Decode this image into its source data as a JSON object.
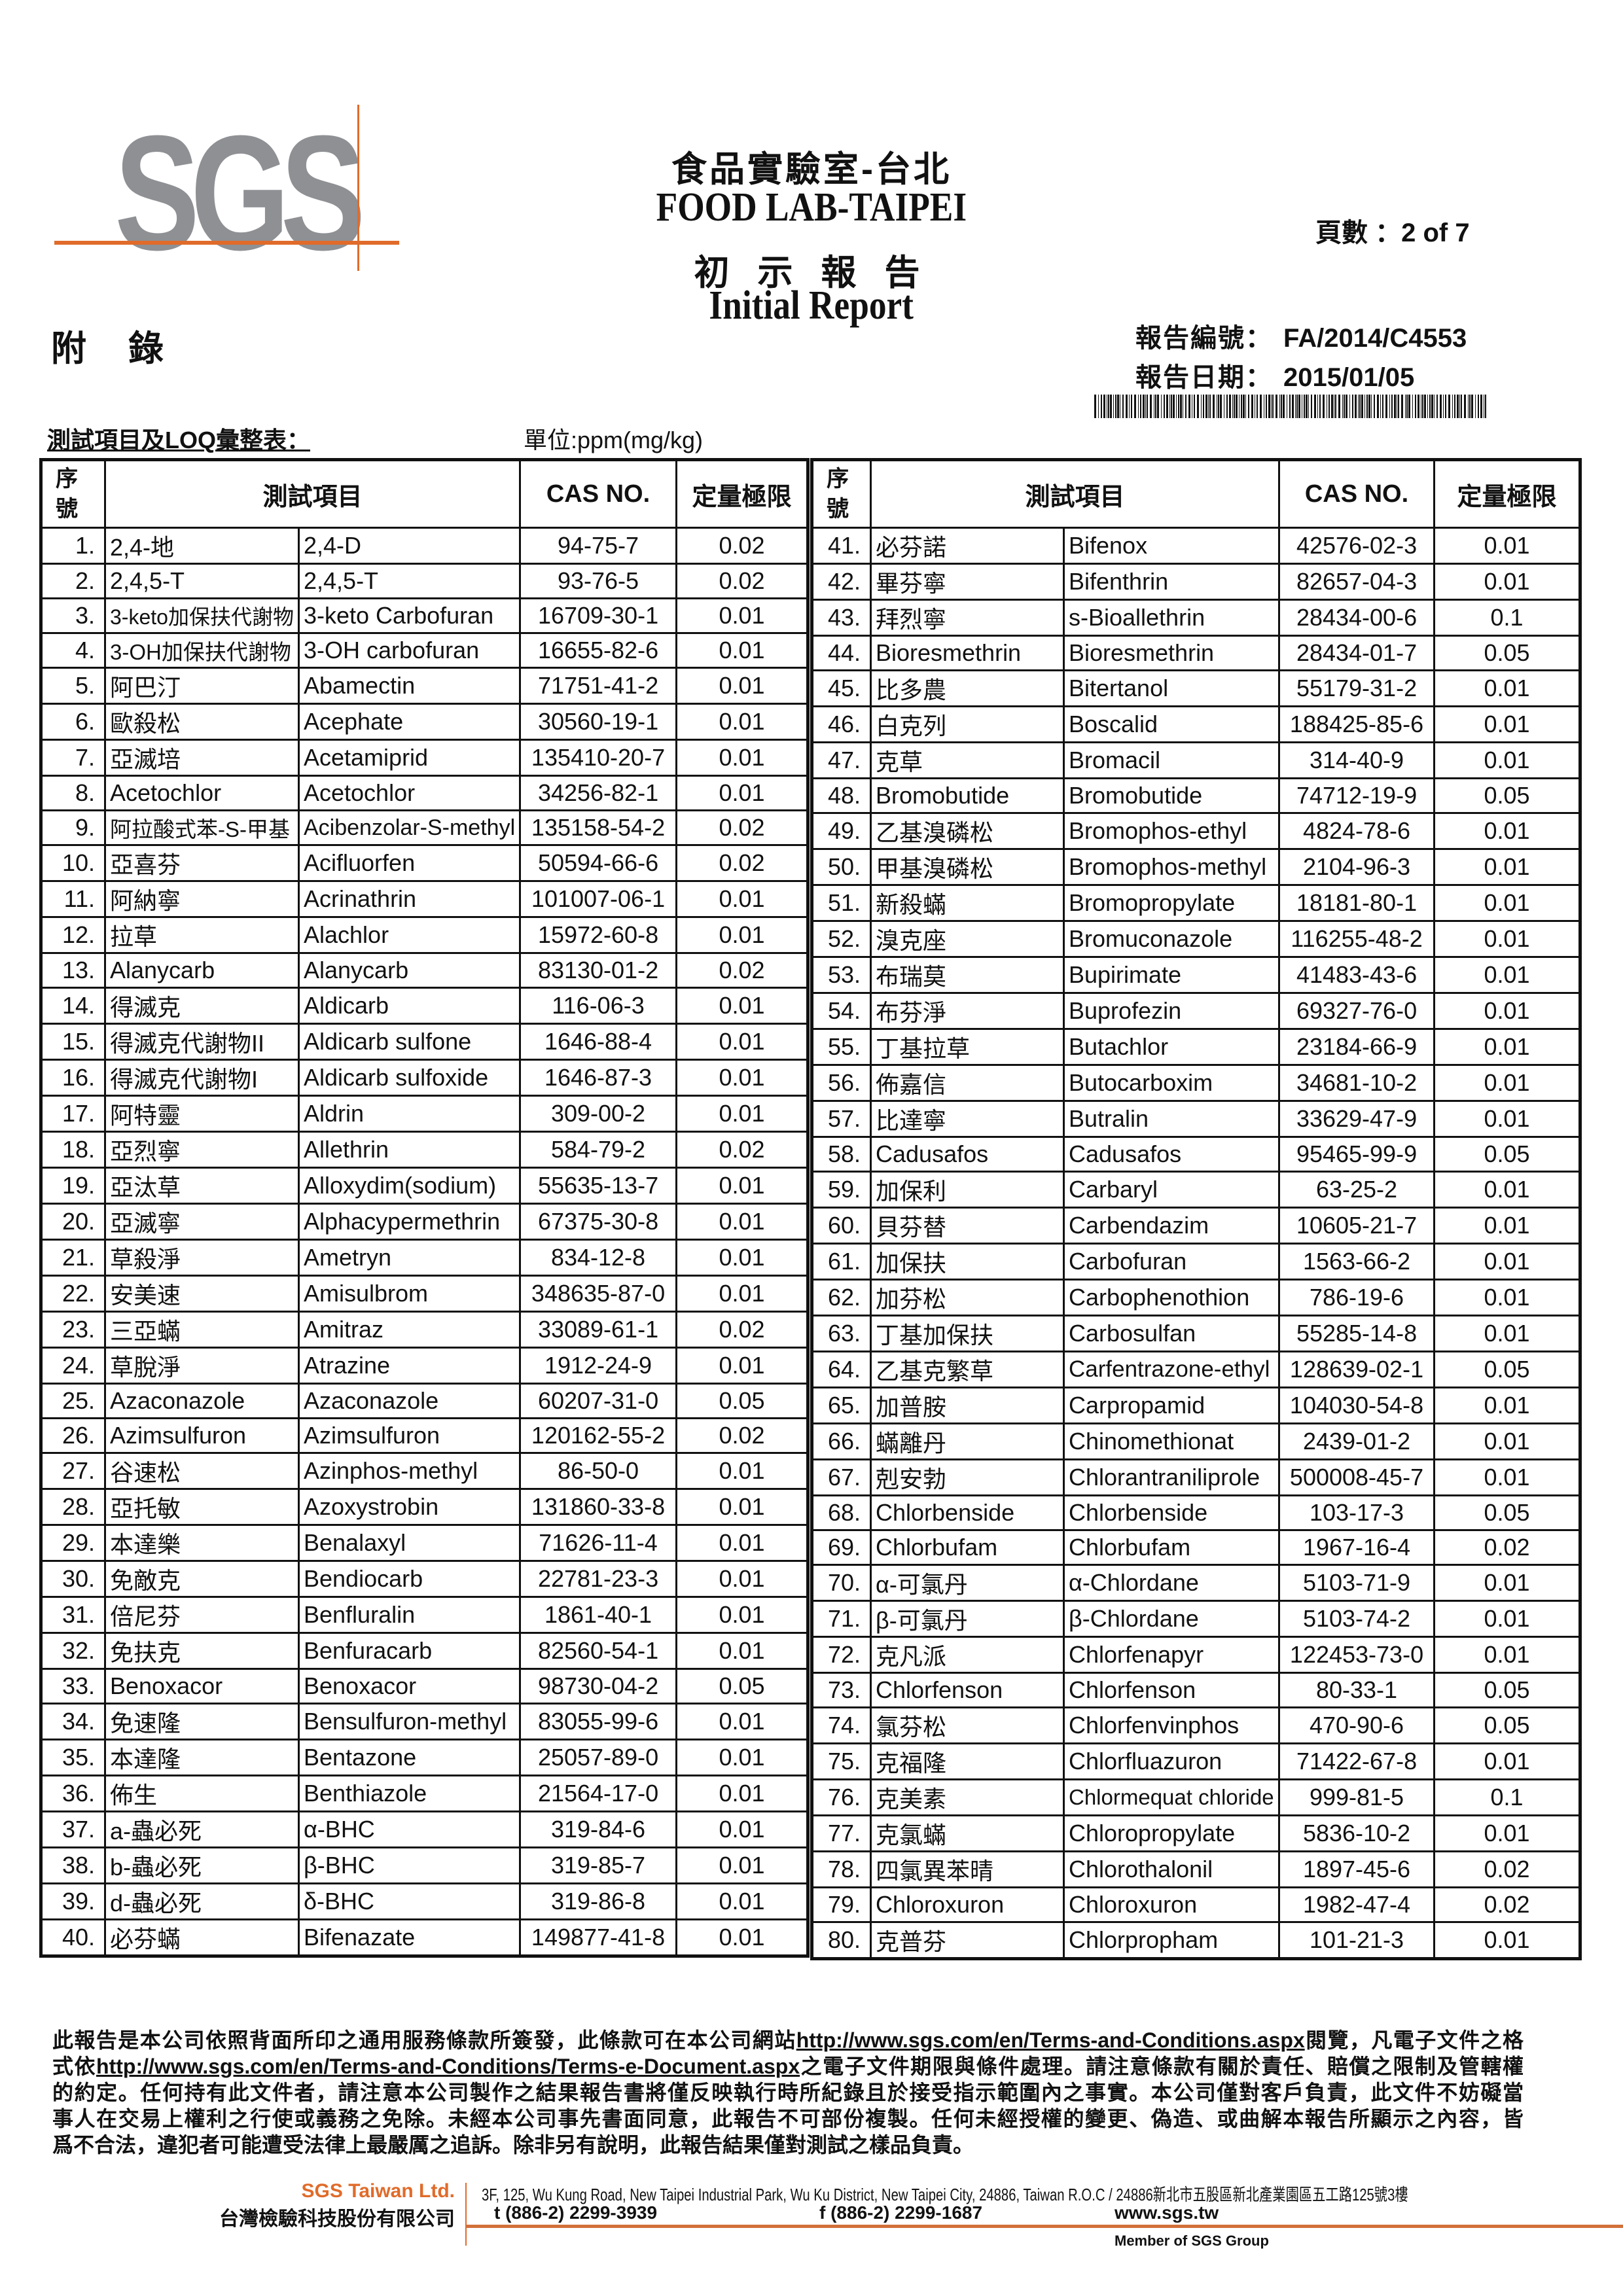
{
  "header": {
    "logo": "SGS",
    "title_cn": "食品實驗室-台北",
    "title_en": "FOOD LAB-TAIPEI",
    "report_type_cn": "初 示 報 告",
    "report_type_en": "Initial Report",
    "page_label": "頁數 ：",
    "page_value": "2 of 7",
    "appendix": "附錄",
    "report_no_label": "報告編號：",
    "report_no": "FA/2014/C4553",
    "report_date_label": "報告日期：",
    "report_date": "2015/01/05",
    "subtitle": "測試項目及LOQ彙整表：",
    "unit": "單位:ppm(mg/kg)"
  },
  "table": {
    "headers": {
      "seq_line1": "序",
      "seq_line2": "號",
      "item": "測試項目",
      "cas": "CAS NO.",
      "loq": "定量極限"
    },
    "left_rows": [
      [
        "1.",
        "2,4-地",
        "2,4-D",
        "94-75-7",
        "0.02"
      ],
      [
        "2.",
        "2,4,5-T",
        "2,4,5-T",
        "93-76-5",
        "0.02"
      ],
      [
        "3.",
        "3-keto加保扶代謝物",
        "3-keto Carbofuran",
        "16709-30-1",
        "0.01"
      ],
      [
        "4.",
        "3-OH加保扶代謝物",
        "3-OH carbofuran",
        "16655-82-6",
        "0.01"
      ],
      [
        "5.",
        "阿巴汀",
        "Abamectin",
        "71751-41-2",
        "0.01"
      ],
      [
        "6.",
        "歐殺松",
        "Acephate",
        "30560-19-1",
        "0.01"
      ],
      [
        "7.",
        "亞滅培",
        "Acetamiprid",
        "135410-20-7",
        "0.01"
      ],
      [
        "8.",
        "Acetochlor",
        "Acetochlor",
        "34256-82-1",
        "0.01"
      ],
      [
        "9.",
        "阿拉酸式苯-S-甲基",
        "Acibenzolar-S-methyl",
        "135158-54-2",
        "0.02"
      ],
      [
        "10.",
        "亞喜芬",
        "Acifluorfen",
        "50594-66-6",
        "0.02"
      ],
      [
        "11.",
        "阿納寧",
        "Acrinathrin",
        "101007-06-1",
        "0.01"
      ],
      [
        "12.",
        "拉草",
        "Alachlor",
        "15972-60-8",
        "0.01"
      ],
      [
        "13.",
        "Alanycarb",
        "Alanycarb",
        "83130-01-2",
        "0.02"
      ],
      [
        "14.",
        "得滅克",
        "Aldicarb",
        "116-06-3",
        "0.01"
      ],
      [
        "15.",
        "得滅克代謝物II",
        "Aldicarb sulfone",
        "1646-88-4",
        "0.01"
      ],
      [
        "16.",
        "得滅克代謝物I",
        "Aldicarb sulfoxide",
        "1646-87-3",
        "0.01"
      ],
      [
        "17.",
        "阿特靈",
        "Aldrin",
        "309-00-2",
        "0.01"
      ],
      [
        "18.",
        "亞烈寧",
        "Allethrin",
        "584-79-2",
        "0.02"
      ],
      [
        "19.",
        "亞汰草",
        "Alloxydim(sodium)",
        "55635-13-7",
        "0.01"
      ],
      [
        "20.",
        "亞滅寧",
        "Alphacypermethrin",
        "67375-30-8",
        "0.01"
      ],
      [
        "21.",
        "草殺淨",
        "Ametryn",
        "834-12-8",
        "0.01"
      ],
      [
        "22.",
        "安美速",
        "Amisulbrom",
        "348635-87-0",
        "0.01"
      ],
      [
        "23.",
        "三亞蟎",
        "Amitraz",
        "33089-61-1",
        "0.02"
      ],
      [
        "24.",
        "草脫淨",
        "Atrazine",
        "1912-24-9",
        "0.01"
      ],
      [
        "25.",
        "Azaconazole",
        "Azaconazole",
        "60207-31-0",
        "0.05"
      ],
      [
        "26.",
        "Azimsulfuron",
        "Azimsulfuron",
        "120162-55-2",
        "0.02"
      ],
      [
        "27.",
        "谷速松",
        "Azinphos-methyl",
        "86-50-0",
        "0.01"
      ],
      [
        "28.",
        "亞托敏",
        "Azoxystrobin",
        "131860-33-8",
        "0.01"
      ],
      [
        "29.",
        "本達樂",
        "Benalaxyl",
        "71626-11-4",
        "0.01"
      ],
      [
        "30.",
        "免敵克",
        "Bendiocarb",
        "22781-23-3",
        "0.01"
      ],
      [
        "31.",
        "倍尼芬",
        "Benfluralin",
        "1861-40-1",
        "0.01"
      ],
      [
        "32.",
        "免扶克",
        "Benfuracarb",
        "82560-54-1",
        "0.01"
      ],
      [
        "33.",
        "Benoxacor",
        "Benoxacor",
        "98730-04-2",
        "0.05"
      ],
      [
        "34.",
        "免速隆",
        "Bensulfuron-methyl",
        "83055-99-6",
        "0.01"
      ],
      [
        "35.",
        "本達隆",
        "Bentazone",
        "25057-89-0",
        "0.01"
      ],
      [
        "36.",
        "佈生",
        "Benthiazole",
        "21564-17-0",
        "0.01"
      ],
      [
        "37.",
        "a-蟲必死",
        "α-BHC",
        "319-84-6",
        "0.01"
      ],
      [
        "38.",
        "b-蟲必死",
        "β-BHC",
        "319-85-7",
        "0.01"
      ],
      [
        "39.",
        "d-蟲必死",
        "δ-BHC",
        "319-86-8",
        "0.01"
      ],
      [
        "40.",
        "必芬蟎",
        "Bifenazate",
        "149877-41-8",
        "0.01"
      ]
    ],
    "right_rows": [
      [
        "41.",
        "必芬諾",
        "Bifenox",
        "42576-02-3",
        "0.01"
      ],
      [
        "42.",
        "畢芬寧",
        "Bifenthrin",
        "82657-04-3",
        "0.01"
      ],
      [
        "43.",
        "拜烈寧",
        "s-Bioallethrin",
        "28434-00-6",
        "0.1"
      ],
      [
        "44.",
        "Bioresmethrin",
        "Bioresmethrin",
        "28434-01-7",
        "0.05"
      ],
      [
        "45.",
        "比多農",
        "Bitertanol",
        "55179-31-2",
        "0.01"
      ],
      [
        "46.",
        "白克列",
        "Boscalid",
        "188425-85-6",
        "0.01"
      ],
      [
        "47.",
        "克草",
        "Bromacil",
        "314-40-9",
        "0.01"
      ],
      [
        "48.",
        "Bromobutide",
        "Bromobutide",
        "74712-19-9",
        "0.05"
      ],
      [
        "49.",
        "乙基溴磷松",
        "Bromophos-ethyl",
        "4824-78-6",
        "0.01"
      ],
      [
        "50.",
        "甲基溴磷松",
        "Bromophos-methyl",
        "2104-96-3",
        "0.01"
      ],
      [
        "51.",
        "新殺蟎",
        "Bromopropylate",
        "18181-80-1",
        "0.01"
      ],
      [
        "52.",
        "溴克座",
        "Bromuconazole",
        "116255-48-2",
        "0.01"
      ],
      [
        "53.",
        "布瑞莫",
        "Bupirimate",
        "41483-43-6",
        "0.01"
      ],
      [
        "54.",
        "布芬淨",
        "Buprofezin",
        "69327-76-0",
        "0.01"
      ],
      [
        "55.",
        "丁基拉草",
        "Butachlor",
        "23184-66-9",
        "0.01"
      ],
      [
        "56.",
        "佈嘉信",
        "Butocarboxim",
        "34681-10-2",
        "0.01"
      ],
      [
        "57.",
        "比達寧",
        "Butralin",
        "33629-47-9",
        "0.01"
      ],
      [
        "58.",
        "Cadusafos",
        "Cadusafos",
        "95465-99-9",
        "0.05"
      ],
      [
        "59.",
        "加保利",
        "Carbaryl",
        "63-25-2",
        "0.01"
      ],
      [
        "60.",
        "貝芬替",
        "Carbendazim",
        "10605-21-7",
        "0.01"
      ],
      [
        "61.",
        "加保扶",
        "Carbofuran",
        "1563-66-2",
        "0.01"
      ],
      [
        "62.",
        "加芬松",
        "Carbophenothion",
        "786-19-6",
        "0.01"
      ],
      [
        "63.",
        "丁基加保扶",
        "Carbosulfan",
        "55285-14-8",
        "0.01"
      ],
      [
        "64.",
        "乙基克繁草",
        "Carfentrazone-ethyl",
        "128639-02-1",
        "0.05"
      ],
      [
        "65.",
        "加普胺",
        "Carpropamid",
        "104030-54-8",
        "0.01"
      ],
      [
        "66.",
        "蟎離丹",
        "Chinomethionat",
        "2439-01-2",
        "0.01"
      ],
      [
        "67.",
        "剋安勃",
        "Chlorantraniliprole",
        "500008-45-7",
        "0.01"
      ],
      [
        "68.",
        "Chlorbenside",
        "Chlorbenside",
        "103-17-3",
        "0.05"
      ],
      [
        "69.",
        "Chlorbufam",
        "Chlorbufam",
        "1967-16-4",
        "0.02"
      ],
      [
        "70.",
        "α-可氯丹",
        "α-Chlordane",
        "5103-71-9",
        "0.01"
      ],
      [
        "71.",
        "β-可氯丹",
        "β-Chlordane",
        "5103-74-2",
        "0.01"
      ],
      [
        "72.",
        "克凡派",
        "Chlorfenapyr",
        "122453-73-0",
        "0.01"
      ],
      [
        "73.",
        "Chlorfenson",
        "Chlorfenson",
        "80-33-1",
        "0.05"
      ],
      [
        "74.",
        "氯芬松",
        "Chlorfenvinphos",
        "470-90-6",
        "0.05"
      ],
      [
        "75.",
        "克福隆",
        "Chlorfluazuron",
        "71422-67-8",
        "0.01"
      ],
      [
        "76.",
        "克美素",
        "Chlormequat chloride",
        "999-81-5",
        "0.1"
      ],
      [
        "77.",
        "克氯蟎",
        "Chloropropylate",
        "5836-10-2",
        "0.01"
      ],
      [
        "78.",
        "四氯異苯晴",
        "Chlorothalonil",
        "1897-45-6",
        "0.02"
      ],
      [
        "79.",
        "Chloroxuron",
        "Chloroxuron",
        "1982-47-4",
        "0.02"
      ],
      [
        "80.",
        "克普芬",
        "Chlorpropham",
        "101-21-3",
        "0.01"
      ]
    ]
  },
  "disclaimer": {
    "l1_pre": "此報告是本公司依照背面所印之通用服務條款所簽發，此條款可在本公司網站",
    "l1_link": "http://www.sgs.com/en/Terms-and-Conditions.aspx",
    "l1_post": "閱覽，凡電子文件之格",
    "l2_pre": "式依",
    "l2_link": "http://www.sgs.com/en/Terms-and-Conditions/Terms-e-Document.aspx",
    "l2_post": "之電子文件期限與條件處理。請注意條款有關於責任、賠償之限制及管轄權",
    "l3": "的約定。任何持有此文件者，請注意本公司製作之結果報告書將僅反映執行時所紀錄且於接受指示範圍內之事實。本公司僅對客戶負責，此文件不妨礙當",
    "l4": "事人在交易上權利之行使或義務之免除。未經本公司事先書面同意，此報告不可部份複製。任何未經授權的變更、偽造、或曲解本報告所顯示之內容，皆",
    "l5": "爲不合法，違犯者可能遭受法律上最嚴厲之追訴。除非另有說明，此報告結果僅對測試之樣品負責。"
  },
  "footer": {
    "company_en": "SGS Taiwan Ltd.",
    "company_cn": "台灣檢驗科技股份有限公司",
    "address": "3F, 125, Wu Kung Road, New Taipei Industrial Park, Wu Ku District, New Taipei City, 24886, Taiwan R.O.C / 24886新北市五股區新北產業園區五工路125號3樓",
    "tel": "t (886-2) 2299-3939",
    "fax": "f (886-2) 2299-1687",
    "website": "www.sgs.tw",
    "member": "Member of SGS Group"
  },
  "colors": {
    "brand_orange": "#e06b2a",
    "logo_gray": "#8e9094"
  }
}
